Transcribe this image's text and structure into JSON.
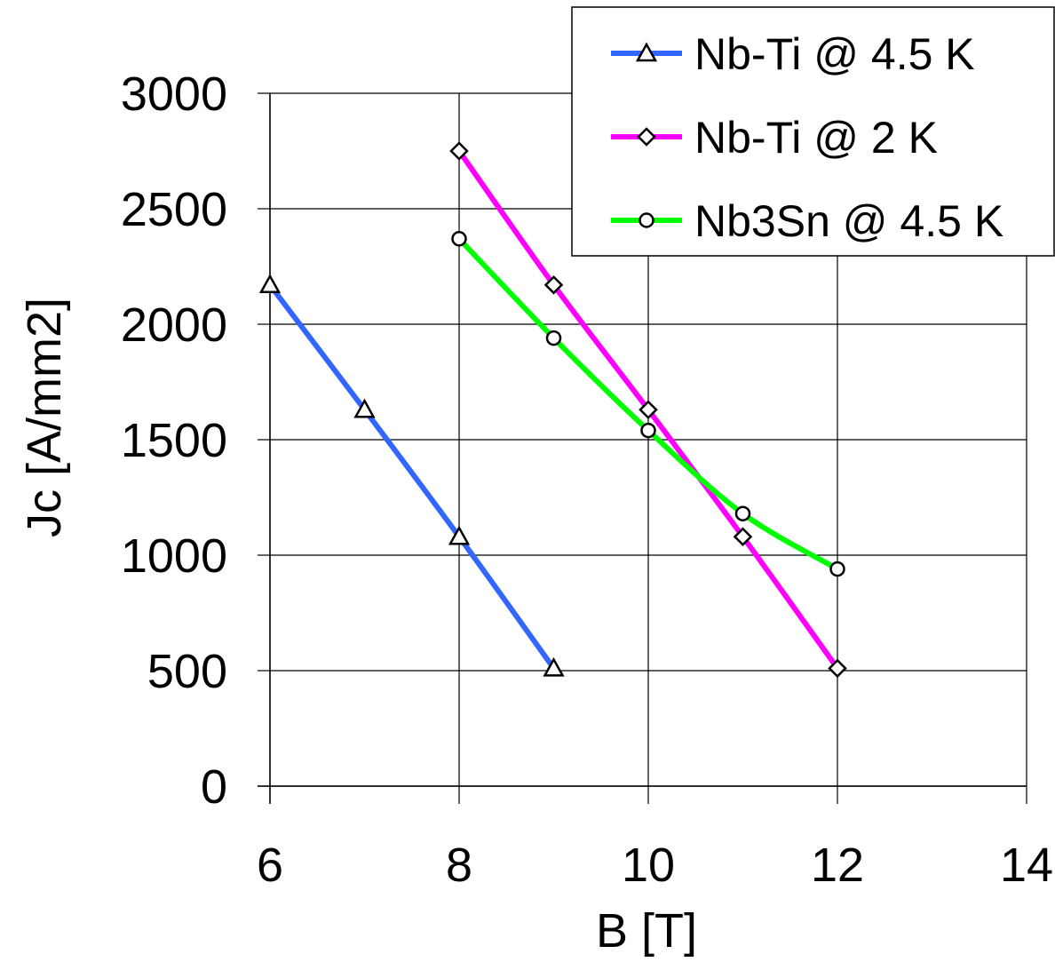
{
  "chart_data": {
    "type": "line",
    "title": "",
    "xlabel": "B [T]",
    "ylabel": "Jc [A/mm2]",
    "xlim": [
      6,
      14
    ],
    "ylim": [
      0,
      3000
    ],
    "xticks": [
      6,
      8,
      10,
      12,
      14
    ],
    "yticks": [
      0,
      500,
      1000,
      1500,
      2000,
      2500,
      3000
    ],
    "grid": true,
    "legend_position": "top-right",
    "series": [
      {
        "name": "Nb-Ti @ 4.5 K",
        "color": "#3366ff",
        "marker": "triangle",
        "x": [
          6,
          7,
          8,
          9
        ],
        "y": [
          2170,
          1630,
          1080,
          510
        ]
      },
      {
        "name": "Nb-Ti @ 2 K",
        "color": "#ff00ff",
        "marker": "diamond",
        "x": [
          8,
          9,
          10,
          11,
          12
        ],
        "y": [
          2750,
          2170,
          1630,
          1080,
          510
        ]
      },
      {
        "name": "Nb3Sn @ 4.5 K",
        "color": "#00ff00",
        "marker": "circle",
        "x": [
          8,
          9,
          10,
          11,
          12
        ],
        "y": [
          2370,
          1940,
          1540,
          1180,
          940
        ]
      }
    ]
  }
}
